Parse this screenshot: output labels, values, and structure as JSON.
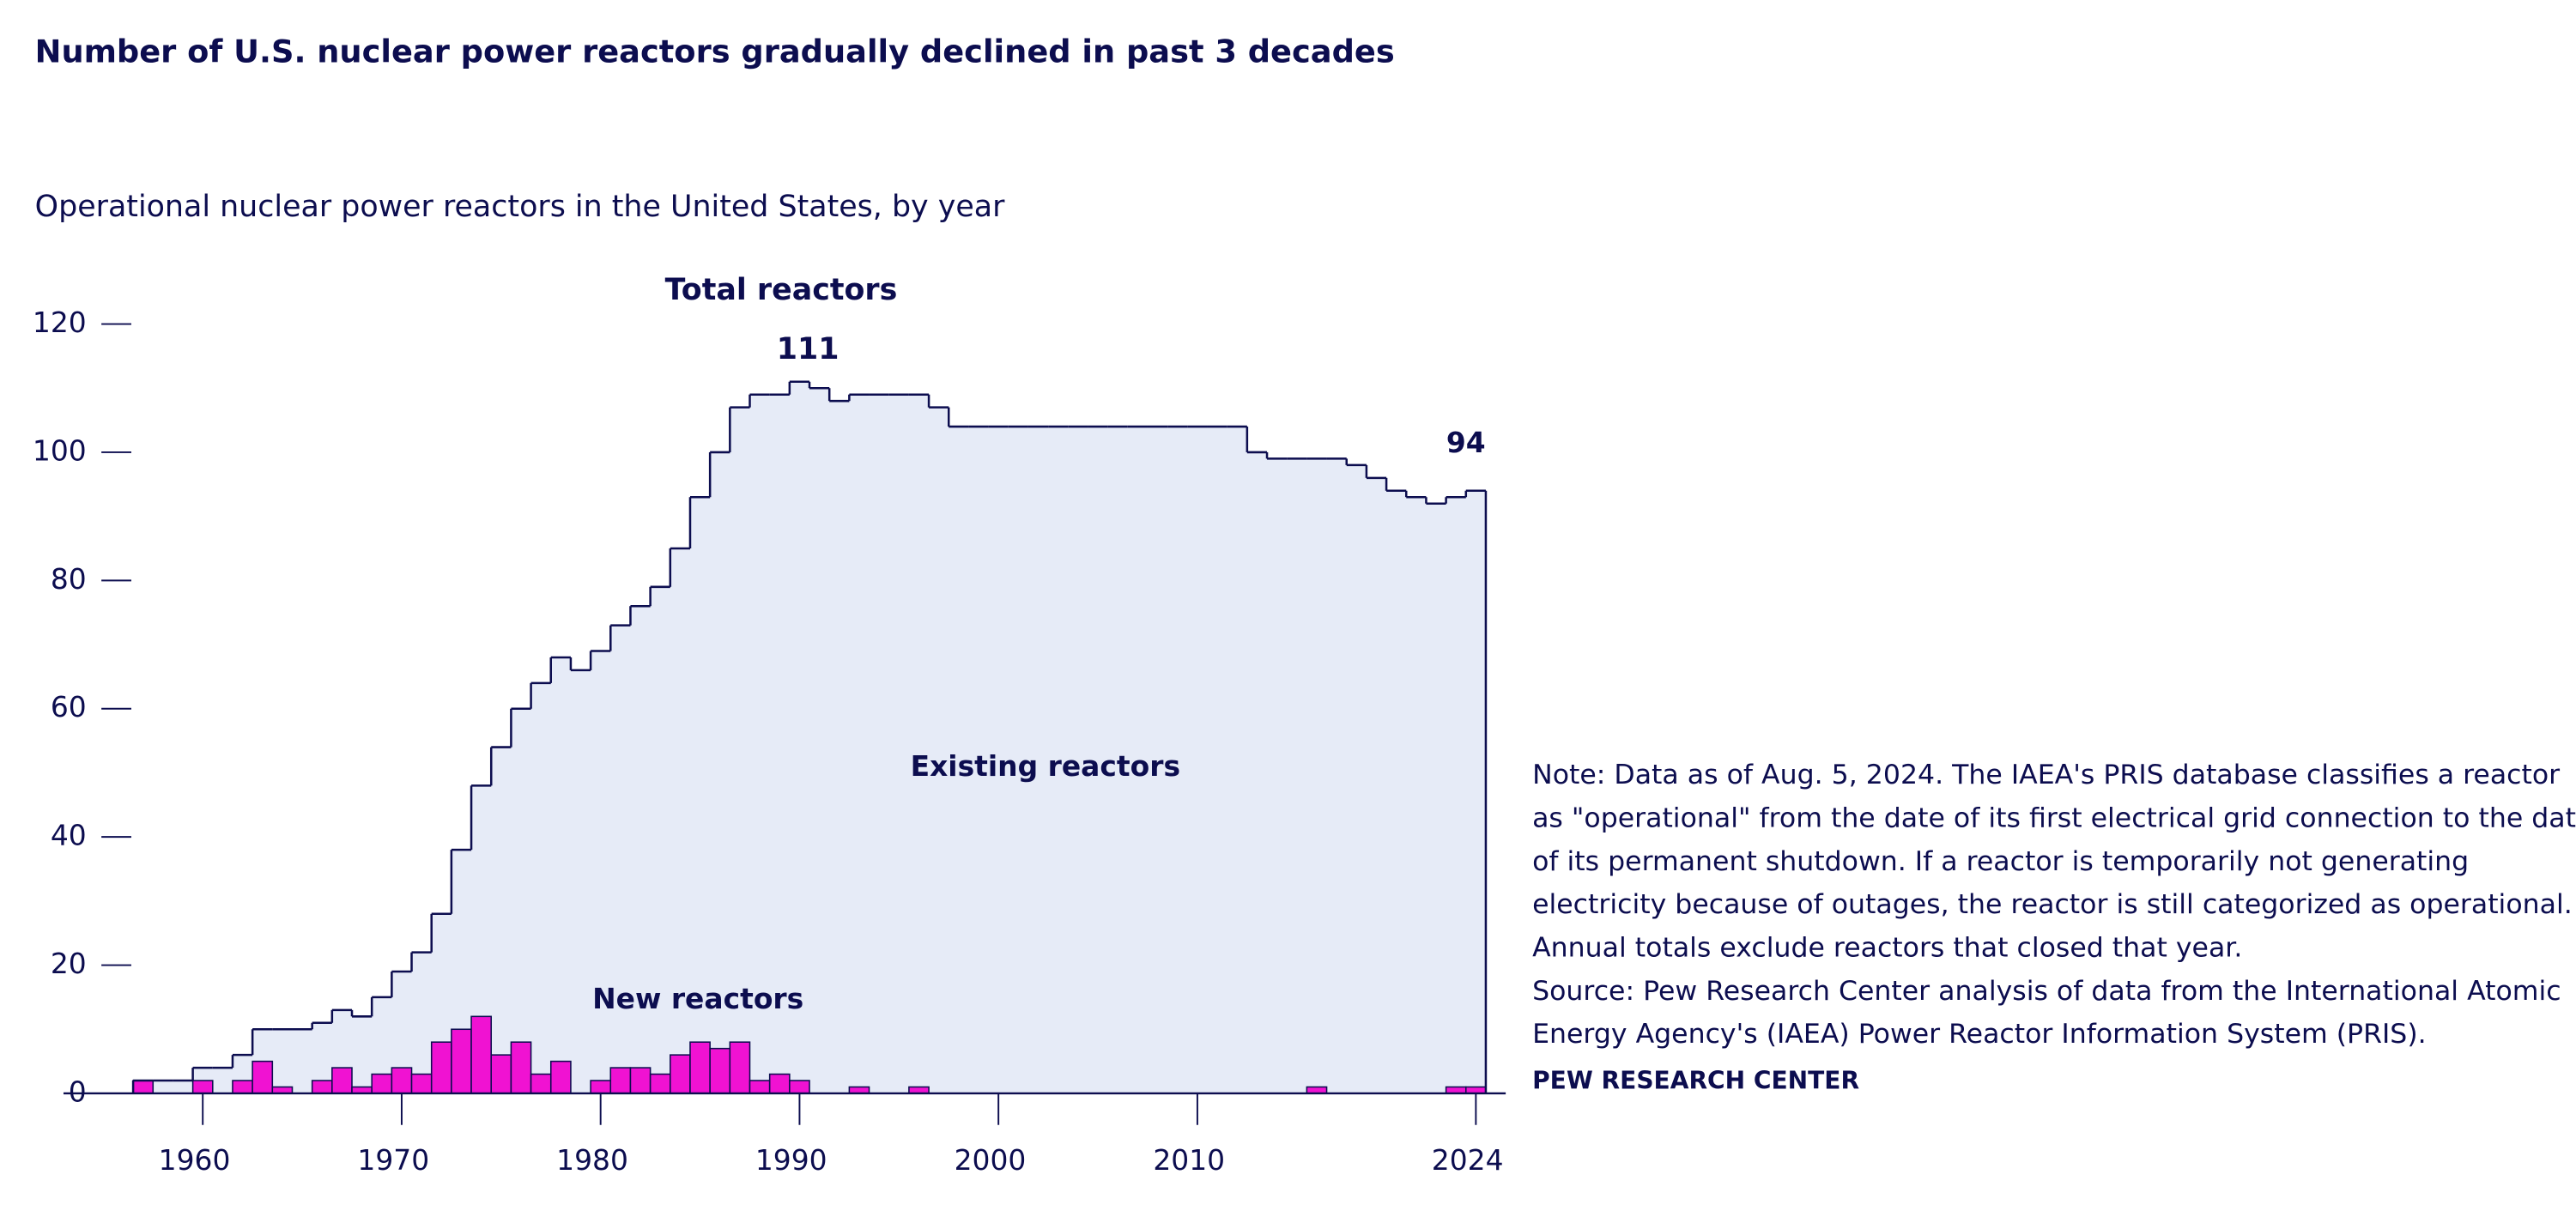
{
  "chart_data": {
    "type": "step-area",
    "title": "Number of U.S. nuclear power reactors gradually declined in past 3 decades",
    "subtitle": "Operational nuclear power reactors in the United States, by year",
    "x": [
      1957,
      1958,
      1959,
      1960,
      1961,
      1962,
      1963,
      1964,
      1965,
      1966,
      1967,
      1968,
      1969,
      1970,
      1971,
      1972,
      1973,
      1974,
      1975,
      1976,
      1977,
      1978,
      1979,
      1980,
      1981,
      1982,
      1983,
      1984,
      1985,
      1986,
      1987,
      1988,
      1989,
      1990,
      1991,
      1992,
      1993,
      1994,
      1995,
      1996,
      1997,
      1998,
      1999,
      2000,
      2001,
      2002,
      2003,
      2004,
      2005,
      2006,
      2007,
      2008,
      2009,
      2010,
      2011,
      2012,
      2013,
      2014,
      2015,
      2016,
      2017,
      2018,
      2019,
      2020,
      2021,
      2022,
      2023,
      2024
    ],
    "series": [
      {
        "name": "Total reactors",
        "color": "#0c0d4f",
        "fill": "#e6ebf7",
        "values": [
          2,
          2,
          2,
          4,
          4,
          6,
          10,
          10,
          10,
          11,
          13,
          12,
          15,
          19,
          22,
          28,
          38,
          48,
          54,
          60,
          64,
          68,
          66,
          69,
          73,
          76,
          79,
          85,
          93,
          100,
          107,
          109,
          109,
          111,
          110,
          108,
          109,
          109,
          109,
          109,
          107,
          104,
          104,
          104,
          104,
          104,
          104,
          104,
          104,
          104,
          104,
          104,
          104,
          104,
          104,
          104,
          100,
          99,
          99,
          99,
          99,
          98,
          96,
          94,
          93,
          92,
          93,
          94
        ]
      },
      {
        "name": "New reactors",
        "color": "#f012d2",
        "values": [
          2,
          0,
          0,
          2,
          0,
          2,
          5,
          1,
          0,
          2,
          4,
          1,
          3,
          4,
          3,
          8,
          10,
          12,
          6,
          8,
          3,
          5,
          0,
          2,
          4,
          4,
          3,
          6,
          8,
          7,
          8,
          2,
          3,
          2,
          0,
          0,
          1,
          0,
          0,
          1,
          0,
          0,
          0,
          0,
          0,
          0,
          0,
          0,
          0,
          0,
          0,
          0,
          0,
          0,
          0,
          0,
          0,
          0,
          0,
          1,
          0,
          0,
          0,
          0,
          0,
          0,
          1,
          1
        ]
      }
    ],
    "annotation": "Existing reactors",
    "xlim": [
      1953,
      2025.5
    ],
    "xticks": [
      1960,
      1970,
      1980,
      1990,
      2000,
      2010,
      2024
    ],
    "ylim": [
      0,
      120
    ],
    "yticks": [
      0,
      20,
      40,
      60,
      80,
      100,
      120
    ],
    "note": [
      "Note: Data as of Aug. 5, 2024. The IAEA's PRIS database classifies a reactor",
      "as \"operational\" from the date of its first electrical grid connection to the date",
      "of its permanent shutdown. If a reactor is temporarily not generating",
      "electricity because of outages, the reactor is still categorized as operational.",
      "Annual totals exclude reactors that closed that year.",
      "Source: Pew Research Center analysis of data from the International Atomic",
      "Energy Agency's (IAEA) Power Reactor Information System (PRIS)."
    ],
    "credit": "PEW RESEARCH CENTER"
  }
}
